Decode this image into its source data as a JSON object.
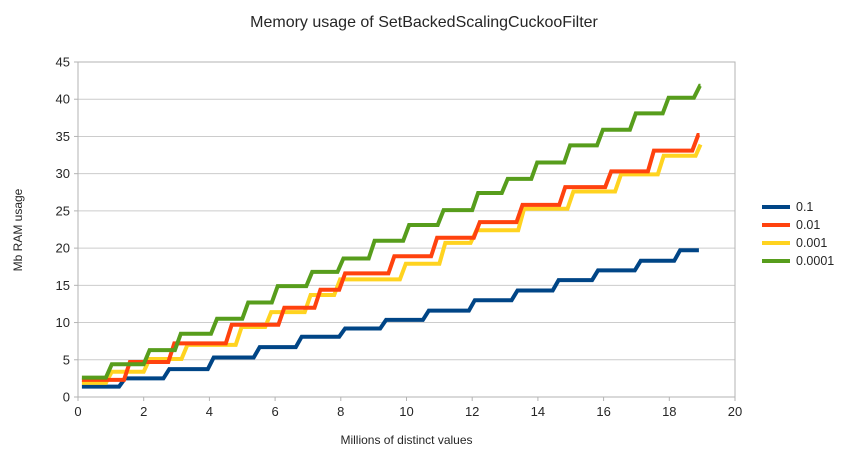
{
  "title": "Memory usage of SetBackedScalingCuckooFilter",
  "chart_data": {
    "type": "line",
    "title": "Memory usage of SetBackedScalingCuckooFilter",
    "xlabel": "Millions of distinct values",
    "ylabel": "Mb RAM usage",
    "xlim": [
      0,
      20
    ],
    "ylim": [
      0,
      45
    ],
    "x_ticks": [
      0,
      2,
      4,
      6,
      8,
      10,
      12,
      14,
      16,
      18,
      20
    ],
    "y_ticks": [
      0,
      5,
      10,
      15,
      20,
      25,
      30,
      35,
      40,
      45
    ],
    "grid": "horizontal-only",
    "legend_position": "right",
    "line_style": "step",
    "series": [
      {
        "name": "0.1",
        "color": "#004586",
        "start": [
          0.12,
          1.4
        ],
        "steps": [
          [
            1.25,
            2.5
          ],
          [
            2.6,
            3.75
          ],
          [
            3.95,
            5.3
          ],
          [
            5.35,
            6.7
          ],
          [
            6.63,
            8.1
          ],
          [
            7.95,
            9.2
          ],
          [
            9.2,
            10.35
          ],
          [
            10.5,
            11.6
          ],
          [
            11.9,
            13.0
          ],
          [
            13.2,
            14.3
          ],
          [
            14.45,
            15.7
          ],
          [
            15.65,
            17.0
          ],
          [
            16.95,
            18.3
          ],
          [
            18.15,
            19.7
          ]
        ],
        "end_x": 18.9
      },
      {
        "name": "0.01",
        "color": "#ff420e",
        "start": [
          0.12,
          2.3
        ],
        "steps": [
          [
            1.4,
            4.7
          ],
          [
            2.75,
            7.2
          ],
          [
            4.5,
            9.7
          ],
          [
            6.1,
            12.0
          ],
          [
            7.2,
            14.4
          ],
          [
            7.95,
            16.6
          ],
          [
            9.45,
            18.9
          ],
          [
            10.75,
            21.4
          ],
          [
            12.05,
            23.5
          ],
          [
            13.35,
            25.8
          ],
          [
            14.65,
            28.2
          ],
          [
            16.05,
            30.3
          ],
          [
            17.35,
            33.1
          ],
          [
            18.7,
            35.2
          ]
        ],
        "end_x": 18.92
      },
      {
        "name": "0.001",
        "color": "#ffd320",
        "start": [
          0.12,
          1.9
        ],
        "steps": [
          [
            0.85,
            3.4
          ],
          [
            2.0,
            5.1
          ],
          [
            3.15,
            7.0
          ],
          [
            4.8,
            9.4
          ],
          [
            5.7,
            11.4
          ],
          [
            6.9,
            13.7
          ],
          [
            7.8,
            15.8
          ],
          [
            9.8,
            17.9
          ],
          [
            11.0,
            20.7
          ],
          [
            11.95,
            22.4
          ],
          [
            13.4,
            25.3
          ],
          [
            14.9,
            27.6
          ],
          [
            16.35,
            29.9
          ],
          [
            17.65,
            32.4
          ],
          [
            18.8,
            33.9
          ]
        ],
        "end_x": 18.95
      },
      {
        "name": "0.0001",
        "color": "#579d1c",
        "start": [
          0.12,
          2.6
        ],
        "steps": [
          [
            0.85,
            4.4
          ],
          [
            2.0,
            6.3
          ],
          [
            2.95,
            8.5
          ],
          [
            4.05,
            10.5
          ],
          [
            5.0,
            12.7
          ],
          [
            5.9,
            14.9
          ],
          [
            6.95,
            16.8
          ],
          [
            7.9,
            18.6
          ],
          [
            8.85,
            21.0
          ],
          [
            9.9,
            23.1
          ],
          [
            10.95,
            25.1
          ],
          [
            12.0,
            27.4
          ],
          [
            12.9,
            29.3
          ],
          [
            13.8,
            31.5
          ],
          [
            14.8,
            33.8
          ],
          [
            15.8,
            35.9
          ],
          [
            16.8,
            38.1
          ],
          [
            17.8,
            40.2
          ],
          [
            18.75,
            41.8
          ]
        ],
        "end_x": 18.95
      }
    ],
    "draw_order": [
      0,
      2,
      1,
      3
    ]
  },
  "legend": {
    "items": [
      {
        "label": "0.1",
        "color": "#004586"
      },
      {
        "label": "0.01",
        "color": "#ff420e"
      },
      {
        "label": "0.001",
        "color": "#ffd320"
      },
      {
        "label": "0.0001",
        "color": "#579d1c"
      }
    ]
  },
  "style_colors": {
    "grid_line": "#cccccc",
    "axis_line": "#b3b3b3",
    "text": "#262626",
    "background": "#ffffff"
  }
}
